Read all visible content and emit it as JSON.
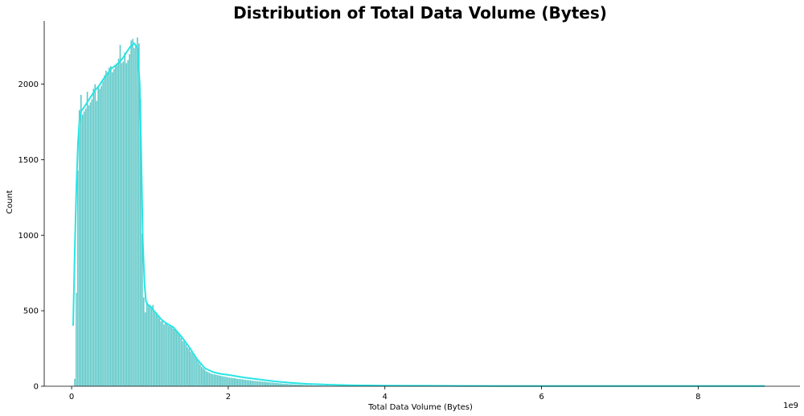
{
  "chart_data": {
    "type": "bar",
    "title": "Distribution of Total Data Volume (Bytes)",
    "xlabel": "Total Data Volume (Bytes)",
    "ylabel": "Count",
    "x_offset_label": "1e9",
    "xlim": [
      -0.35,
      9.3
    ],
    "ylim": [
      0,
      2440
    ],
    "x_ticks": [
      0,
      2,
      4,
      6,
      8
    ],
    "x_tick_labels": [
      "0",
      "2",
      "4",
      "6",
      "8"
    ],
    "y_ticks": [
      0,
      500,
      1000,
      1500,
      2000
    ],
    "y_tick_labels": [
      "0",
      "500",
      "1000",
      "1500",
      "2000"
    ],
    "grid": false,
    "bar_color": "#5fc8c8",
    "bar_edge_color": "#ffffff",
    "kde_color": "#27e5e5",
    "series": [
      {
        "type": "histogram",
        "bins": [
          [
            0.03,
            0.05,
            50
          ],
          [
            0.05,
            0.07,
            620
          ],
          [
            0.07,
            0.09,
            1430
          ],
          [
            0.09,
            0.11,
            1830
          ],
          [
            0.11,
            0.13,
            1930
          ],
          [
            0.13,
            0.15,
            1800
          ],
          [
            0.15,
            0.17,
            1820
          ],
          [
            0.17,
            0.19,
            1840
          ],
          [
            0.19,
            0.21,
            1950
          ],
          [
            0.21,
            0.23,
            1860
          ],
          [
            0.23,
            0.25,
            1880
          ],
          [
            0.25,
            0.27,
            1900
          ],
          [
            0.27,
            0.29,
            1970
          ],
          [
            0.29,
            0.31,
            2000
          ],
          [
            0.31,
            0.33,
            1890
          ],
          [
            0.33,
            0.35,
            1990
          ],
          [
            0.35,
            0.37,
            1970
          ],
          [
            0.37,
            0.39,
            1990
          ],
          [
            0.39,
            0.41,
            2020
          ],
          [
            0.41,
            0.43,
            2060
          ],
          [
            0.43,
            0.45,
            2090
          ],
          [
            0.45,
            0.47,
            2080
          ],
          [
            0.47,
            0.49,
            2110
          ],
          [
            0.49,
            0.51,
            2120
          ],
          [
            0.51,
            0.53,
            2080
          ],
          [
            0.53,
            0.55,
            2100
          ],
          [
            0.55,
            0.57,
            2130
          ],
          [
            0.57,
            0.59,
            2140
          ],
          [
            0.59,
            0.61,
            2170
          ],
          [
            0.61,
            0.63,
            2260
          ],
          [
            0.63,
            0.65,
            2140
          ],
          [
            0.65,
            0.67,
            2150
          ],
          [
            0.67,
            0.69,
            2210
          ],
          [
            0.69,
            0.71,
            2140
          ],
          [
            0.71,
            0.73,
            2160
          ],
          [
            0.73,
            0.75,
            2200
          ],
          [
            0.75,
            0.77,
            2290
          ],
          [
            0.77,
            0.79,
            2300
          ],
          [
            0.79,
            0.81,
            2240
          ],
          [
            0.81,
            0.83,
            2260
          ],
          [
            0.83,
            0.85,
            2310
          ],
          [
            0.85,
            0.87,
            2270
          ],
          [
            0.87,
            0.89,
            1900
          ],
          [
            0.89,
            0.91,
            1010
          ],
          [
            0.91,
            0.93,
            590
          ],
          [
            0.93,
            0.95,
            490
          ],
          [
            0.95,
            0.97,
            560
          ],
          [
            0.97,
            0.99,
            530
          ],
          [
            0.99,
            1.01,
            540
          ],
          [
            1.01,
            1.03,
            530
          ],
          [
            1.03,
            1.05,
            540
          ],
          [
            1.05,
            1.07,
            500
          ],
          [
            1.07,
            1.09,
            490
          ],
          [
            1.09,
            1.11,
            470
          ],
          [
            1.11,
            1.13,
            450
          ],
          [
            1.13,
            1.15,
            430
          ],
          [
            1.15,
            1.17,
            440
          ],
          [
            1.17,
            1.19,
            410
          ],
          [
            1.19,
            1.21,
            420
          ],
          [
            1.21,
            1.23,
            410
          ],
          [
            1.23,
            1.25,
            400
          ],
          [
            1.25,
            1.27,
            400
          ],
          [
            1.27,
            1.29,
            390
          ],
          [
            1.29,
            1.31,
            380
          ],
          [
            1.31,
            1.33,
            380
          ],
          [
            1.33,
            1.35,
            360
          ],
          [
            1.35,
            1.37,
            350
          ],
          [
            1.37,
            1.39,
            340
          ],
          [
            1.39,
            1.41,
            320
          ],
          [
            1.41,
            1.43,
            300
          ],
          [
            1.43,
            1.45,
            300
          ],
          [
            1.45,
            1.47,
            280
          ],
          [
            1.47,
            1.49,
            260
          ],
          [
            1.49,
            1.51,
            250
          ],
          [
            1.51,
            1.53,
            230
          ],
          [
            1.53,
            1.55,
            220
          ],
          [
            1.55,
            1.57,
            210
          ],
          [
            1.57,
            1.59,
            190
          ],
          [
            1.59,
            1.61,
            175
          ],
          [
            1.61,
            1.63,
            160
          ],
          [
            1.63,
            1.65,
            145
          ],
          [
            1.65,
            1.67,
            130
          ],
          [
            1.67,
            1.69,
            120
          ],
          [
            1.69,
            1.71,
            110
          ],
          [
            1.71,
            1.73,
            100
          ],
          [
            1.73,
            1.75,
            95
          ],
          [
            1.75,
            1.77,
            90
          ],
          [
            1.77,
            1.79,
            85
          ],
          [
            1.79,
            1.81,
            82
          ],
          [
            1.81,
            1.83,
            80
          ],
          [
            1.83,
            1.85,
            78
          ],
          [
            1.85,
            1.87,
            75
          ],
          [
            1.87,
            1.89,
            72
          ],
          [
            1.89,
            1.91,
            70
          ],
          [
            1.91,
            1.93,
            68
          ],
          [
            1.93,
            1.95,
            66
          ],
          [
            1.95,
            1.97,
            64
          ],
          [
            1.97,
            1.99,
            62
          ],
          [
            1.99,
            2.01,
            60
          ],
          [
            2.01,
            2.03,
            58
          ],
          [
            2.03,
            2.05,
            57
          ],
          [
            2.05,
            2.07,
            55
          ],
          [
            2.07,
            2.09,
            54
          ],
          [
            2.09,
            2.11,
            52
          ],
          [
            2.11,
            2.13,
            50
          ],
          [
            2.13,
            2.15,
            49
          ],
          [
            2.15,
            2.17,
            48
          ],
          [
            2.17,
            2.19,
            46
          ],
          [
            2.19,
            2.21,
            45
          ],
          [
            2.21,
            2.23,
            44
          ],
          [
            2.23,
            2.25,
            42
          ],
          [
            2.25,
            2.27,
            41
          ],
          [
            2.27,
            2.29,
            40
          ],
          [
            2.29,
            2.31,
            38
          ],
          [
            2.31,
            2.33,
            37
          ],
          [
            2.33,
            2.35,
            36
          ],
          [
            2.35,
            2.37,
            35
          ],
          [
            2.37,
            2.39,
            34
          ],
          [
            2.39,
            2.41,
            33
          ],
          [
            2.41,
            2.43,
            32
          ],
          [
            2.43,
            2.45,
            31
          ],
          [
            2.45,
            2.47,
            30
          ],
          [
            2.47,
            2.49,
            29
          ],
          [
            2.49,
            2.51,
            28
          ],
          [
            2.51,
            2.53,
            27
          ],
          [
            2.53,
            2.55,
            26
          ],
          [
            2.55,
            2.57,
            25
          ],
          [
            2.57,
            2.59,
            24
          ],
          [
            2.59,
            2.61,
            23
          ],
          [
            2.61,
            2.63,
            22
          ],
          [
            2.63,
            2.65,
            21
          ],
          [
            2.65,
            2.67,
            20
          ],
          [
            2.67,
            2.69,
            19
          ],
          [
            2.69,
            2.71,
            18
          ],
          [
            2.71,
            2.73,
            18
          ],
          [
            2.73,
            2.75,
            17
          ],
          [
            2.75,
            2.77,
            16
          ],
          [
            2.77,
            2.79,
            15
          ],
          [
            2.79,
            2.81,
            15
          ],
          [
            2.81,
            2.83,
            14
          ],
          [
            2.83,
            2.85,
            13
          ],
          [
            2.85,
            2.87,
            13
          ],
          [
            2.87,
            2.89,
            12
          ],
          [
            2.89,
            2.91,
            12
          ],
          [
            2.91,
            2.93,
            11
          ],
          [
            2.93,
            2.95,
            11
          ],
          [
            2.95,
            2.97,
            10
          ],
          [
            2.97,
            2.99,
            10
          ],
          [
            2.99,
            3.01,
            9
          ],
          [
            3.01,
            3.03,
            9
          ],
          [
            3.03,
            3.05,
            8
          ],
          [
            3.05,
            3.07,
            8
          ],
          [
            3.07,
            3.09,
            7
          ],
          [
            3.09,
            3.11,
            7
          ],
          [
            3.11,
            3.13,
            7
          ],
          [
            3.13,
            3.15,
            6
          ],
          [
            3.15,
            3.17,
            6
          ],
          [
            3.17,
            3.19,
            6
          ],
          [
            3.19,
            3.21,
            5
          ],
          [
            3.21,
            3.23,
            5
          ],
          [
            3.23,
            3.25,
            5
          ],
          [
            3.25,
            3.27,
            5
          ],
          [
            3.27,
            3.29,
            4
          ],
          [
            3.29,
            3.31,
            4
          ],
          [
            3.31,
            3.33,
            4
          ],
          [
            3.33,
            3.35,
            4
          ],
          [
            3.35,
            3.37,
            4
          ],
          [
            3.37,
            3.39,
            3
          ],
          [
            3.39,
            3.41,
            3
          ],
          [
            3.41,
            3.43,
            3
          ],
          [
            3.43,
            3.45,
            3
          ],
          [
            3.45,
            3.47,
            3
          ],
          [
            3.47,
            3.49,
            3
          ],
          [
            3.49,
            3.51,
            3
          ],
          [
            3.51,
            3.53,
            2
          ],
          [
            3.53,
            3.55,
            2
          ],
          [
            3.55,
            3.57,
            2
          ],
          [
            3.57,
            3.59,
            2
          ],
          [
            3.59,
            3.61,
            2
          ],
          [
            3.61,
            3.63,
            2
          ],
          [
            3.63,
            3.65,
            2
          ],
          [
            3.65,
            3.67,
            2
          ],
          [
            3.67,
            3.69,
            2
          ],
          [
            3.69,
            3.71,
            2
          ],
          [
            3.71,
            3.73,
            2
          ],
          [
            3.73,
            3.75,
            1
          ],
          [
            3.75,
            3.77,
            1
          ],
          [
            3.77,
            3.79,
            1
          ],
          [
            3.79,
            3.81,
            1
          ],
          [
            3.81,
            3.83,
            1
          ],
          [
            3.83,
            3.85,
            1
          ],
          [
            3.85,
            3.87,
            1
          ],
          [
            3.87,
            3.89,
            1
          ],
          [
            3.89,
            3.91,
            1
          ],
          [
            3.91,
            3.93,
            1
          ]
        ]
      },
      {
        "type": "kde",
        "x": [
          0.02,
          0.04,
          0.06,
          0.08,
          0.1,
          0.12,
          0.15,
          0.2,
          0.25,
          0.3,
          0.35,
          0.4,
          0.45,
          0.5,
          0.55,
          0.6,
          0.65,
          0.7,
          0.75,
          0.8,
          0.84,
          0.87,
          0.89,
          0.91,
          0.93,
          0.95,
          0.98,
          1.0,
          1.05,
          1.1,
          1.15,
          1.2,
          1.3,
          1.4,
          1.5,
          1.6,
          1.7,
          1.8,
          1.9,
          2.0,
          2.2,
          2.4,
          2.6,
          2.8,
          3.0,
          3.3,
          3.6,
          4.0,
          4.5,
          5.0,
          6.0,
          7.0,
          8.0,
          8.85
        ],
        "y": [
          400,
          900,
          1300,
          1600,
          1760,
          1820,
          1840,
          1880,
          1920,
          1960,
          1990,
          2030,
          2060,
          2100,
          2120,
          2140,
          2170,
          2210,
          2250,
          2270,
          2240,
          2000,
          1500,
          950,
          680,
          560,
          535,
          530,
          500,
          470,
          440,
          420,
          390,
          330,
          260,
          180,
          120,
          95,
          82,
          75,
          58,
          45,
          32,
          23,
          16,
          10,
          6,
          4,
          3,
          2,
          1,
          1,
          1,
          1
        ]
      }
    ]
  }
}
